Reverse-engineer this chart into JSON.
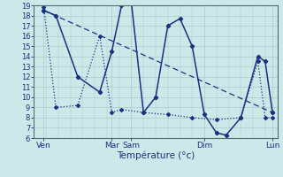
{
  "xlabel": "Température (°c)",
  "background_color": "#cce8e8",
  "grid_color": "#aacccc",
  "line_color": "#1a3080",
  "ylim": [
    6,
    19
  ],
  "xlim": [
    0,
    10
  ],
  "xtick_labels": [
    "Ven",
    "Mar",
    "Sam",
    "Dim",
    "Lun"
  ],
  "xtick_positions": [
    0.4,
    3.2,
    4.0,
    7.0,
    9.8
  ],
  "ytick_positions": [
    6,
    7,
    8,
    9,
    10,
    11,
    12,
    13,
    14,
    15,
    16,
    17,
    18,
    19
  ],
  "line1_x": [
    0.4,
    0.9,
    1.8,
    2.7,
    3.2,
    3.6,
    4.0,
    4.5,
    5.0,
    5.5,
    6.0,
    6.5,
    7.0,
    7.5,
    7.9,
    8.5,
    9.2,
    9.5,
    9.8
  ],
  "line1_y": [
    18.5,
    18.0,
    12.0,
    10.5,
    14.5,
    19.0,
    19.3,
    8.5,
    10.0,
    17.0,
    17.7,
    15.0,
    8.3,
    6.5,
    6.3,
    8.0,
    14.0,
    13.5,
    8.5
  ],
  "line2_x": [
    0.4,
    0.9,
    1.8,
    2.7,
    3.2,
    3.6,
    4.5,
    5.5,
    6.5,
    7.5,
    8.5,
    9.2,
    9.5,
    9.8
  ],
  "line2_y": [
    18.8,
    9.0,
    9.2,
    16.0,
    8.5,
    8.8,
    8.5,
    8.3,
    8.0,
    7.8,
    8.0,
    13.5,
    8.0,
    8.0
  ],
  "line3_x": [
    0.4,
    9.8
  ],
  "line3_y": [
    18.5,
    8.5
  ]
}
